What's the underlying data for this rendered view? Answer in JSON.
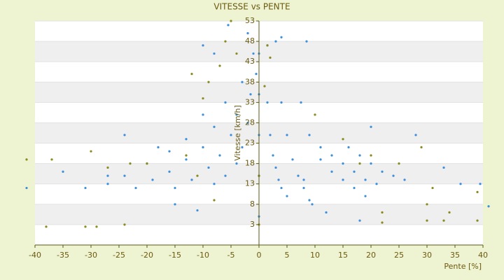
{
  "chart_data": {
    "type": "scatter",
    "title": "VITESSE vs PENTE",
    "x_label": "Pente [%]",
    "y_label": "Vitesse [km/h]",
    "xlim": [
      -40,
      40
    ],
    "ylim": [
      -2,
      53
    ],
    "xticks": [
      -40,
      -35,
      -30,
      -25,
      -20,
      -15,
      -10,
      -5,
      0,
      5,
      10,
      15,
      20,
      25,
      30,
      35,
      40
    ],
    "yticks": [
      3,
      8,
      13,
      18,
      23,
      28,
      33,
      38,
      43,
      48,
      53
    ],
    "bands": true,
    "series": [
      {
        "color": "#3b8fdb",
        "x": [
          1.5,
          2,
          2.5,
          3,
          3.5,
          4,
          5,
          4,
          5,
          6,
          7,
          8,
          9,
          9.5,
          7.5,
          9,
          11,
          13,
          15,
          17,
          19,
          11,
          13,
          15,
          17,
          19,
          21,
          16,
          18,
          20,
          22,
          24,
          26,
          -1,
          -1.5,
          -2,
          -3,
          -4,
          -6,
          -8,
          -3,
          -4,
          -5,
          -7,
          -9,
          -12,
          -15,
          -6,
          -8,
          -10,
          -13,
          -16,
          -19,
          -22,
          -10,
          -13,
          -16,
          -20,
          -24,
          -27,
          -41.5,
          -35,
          -31,
          -27,
          -24,
          -18,
          -15,
          -10,
          -8,
          -11,
          3,
          4,
          8.5,
          8,
          12,
          18,
          20,
          28,
          36,
          39.5,
          41,
          33,
          -5.5,
          -2,
          1.5,
          0,
          0,
          0,
          0,
          0,
          -0.5
        ],
        "values": [
          33,
          25,
          20,
          17,
          14,
          12,
          10,
          33,
          25,
          19,
          15,
          12,
          9,
          8,
          33,
          25,
          19,
          16,
          14,
          12,
          10,
          22,
          20,
          18,
          16,
          14,
          13,
          22,
          20,
          18,
          16,
          15,
          14,
          45,
          35,
          28,
          22,
          18,
          15,
          13,
          38,
          30,
          25,
          20,
          17,
          14,
          12,
          33,
          27,
          22,
          19,
          16,
          14,
          12,
          30,
          24,
          21,
          18,
          15,
          13,
          12,
          16,
          12,
          15,
          25,
          22,
          8,
          47,
          45,
          6.5,
          48,
          49,
          48,
          14,
          6,
          4,
          27,
          25,
          13,
          13,
          7.5,
          17,
          52,
          50,
          47,
          5,
          15,
          25,
          35,
          45,
          40
        ]
      },
      {
        "color": "#8a8a1c",
        "x": [
          -41.5,
          -38,
          -31,
          -29,
          -24,
          -37,
          -30,
          -27,
          -23,
          -20,
          -5,
          -6,
          -4,
          -7,
          -9,
          -10,
          -12,
          0,
          0,
          1,
          1.5,
          2,
          15,
          20,
          22,
          22,
          25,
          29,
          30,
          30,
          33,
          34,
          39,
          39,
          31,
          -13,
          -11,
          -8,
          18,
          10
        ],
        "values": [
          19,
          2.5,
          2.5,
          2.5,
          3,
          19,
          21,
          17,
          18,
          18,
          53,
          48,
          45,
          42,
          38,
          34,
          40,
          3,
          15,
          37,
          47,
          44,
          24,
          20,
          6,
          3.5,
          18,
          22,
          4,
          8,
          4,
          6,
          4,
          11,
          12,
          20,
          15,
          9,
          18,
          30
        ]
      }
    ]
  }
}
